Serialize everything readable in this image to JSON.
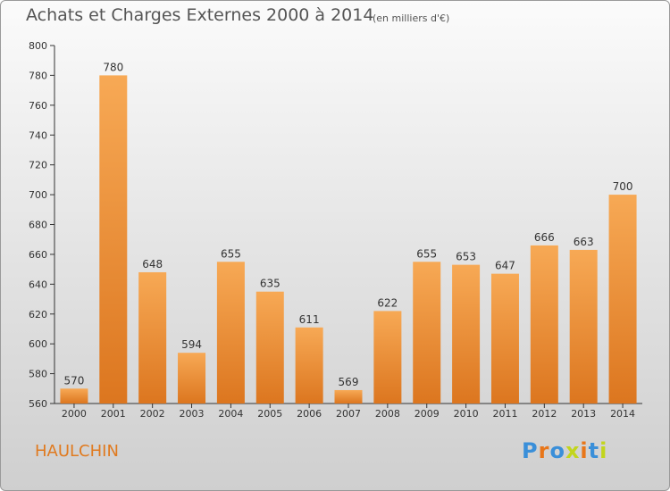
{
  "header": {
    "title": "Achats et Charges Externes 2000 à 2014",
    "unit": "(en milliers d'€)"
  },
  "town": "HAULCHIN",
  "logo": {
    "text": "Proxiti",
    "colors": [
      "#3a8fd9",
      "#e8761a",
      "#3a8fd9",
      "#c2d51d",
      "#e8761a",
      "#3a8fd9",
      "#c2d51d"
    ]
  },
  "colors": {
    "bar_light": "#f7a955",
    "bar_dark": "#dc761f",
    "axis": "#333333",
    "grid": "#cccccc"
  },
  "chart_data": {
    "type": "bar",
    "title": "Achats et Charges Externes 2000 à 2014",
    "subtitle": "(en milliers d'€)",
    "xlabel": "",
    "ylabel": "",
    "categories": [
      "2000",
      "2001",
      "2002",
      "2003",
      "2004",
      "2005",
      "2006",
      "2007",
      "2008",
      "2009",
      "2010",
      "2011",
      "2012",
      "2013",
      "2014"
    ],
    "values": [
      570,
      780,
      648,
      594,
      655,
      635,
      611,
      569,
      622,
      655,
      653,
      647,
      666,
      663,
      700
    ],
    "ylim": [
      560,
      800
    ],
    "yticks": [
      560,
      580,
      600,
      620,
      640,
      660,
      680,
      700,
      720,
      740,
      760,
      780,
      800
    ],
    "grid": false,
    "data_labels": true
  }
}
